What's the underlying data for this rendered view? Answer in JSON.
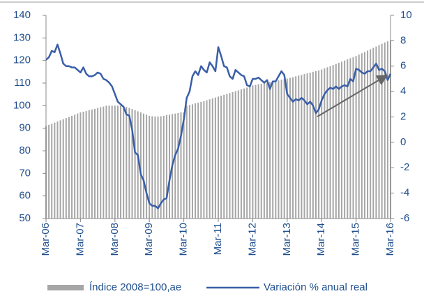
{
  "chart_data": {
    "type": "bar-line",
    "categories": [
      "Mar-06",
      null,
      null,
      null,
      null,
      null,
      null,
      null,
      null,
      null,
      null,
      null,
      "Mar-07",
      null,
      null,
      null,
      null,
      null,
      null,
      null,
      null,
      null,
      null,
      null,
      "Mar-08",
      null,
      null,
      null,
      null,
      null,
      null,
      null,
      null,
      null,
      null,
      null,
      "Mar-09",
      null,
      null,
      null,
      null,
      null,
      null,
      null,
      null,
      null,
      null,
      null,
      "Mar-10",
      null,
      null,
      null,
      null,
      null,
      null,
      null,
      null,
      null,
      null,
      null,
      "Mar-11",
      null,
      null,
      null,
      null,
      null,
      null,
      null,
      null,
      null,
      null,
      null,
      "Mar-12",
      null,
      null,
      null,
      null,
      null,
      null,
      null,
      null,
      null,
      null,
      null,
      "Mar-13",
      null,
      null,
      null,
      null,
      null,
      null,
      null,
      null,
      null,
      null,
      null,
      "Mar-14",
      null,
      null,
      null,
      null,
      null,
      null,
      null,
      null,
      null,
      null,
      null,
      "Mar-15",
      null,
      null,
      null,
      null,
      null,
      null,
      null,
      null,
      null,
      null,
      null,
      "Mar-16"
    ],
    "series": [
      {
        "name": "Índice 2008=100,ae",
        "type": "bar",
        "color": "#a6a6a6",
        "values": [
          91,
          91.5,
          92,
          92.5,
          93,
          93.5,
          94,
          94.5,
          95,
          95.5,
          96,
          96.5,
          97,
          97.3,
          97.6,
          98,
          98.3,
          98.6,
          99,
          99.3,
          99.6,
          100,
          100,
          100,
          100,
          100,
          100,
          99.8,
          99.5,
          99,
          98.5,
          98,
          97.5,
          97,
          96.5,
          96,
          95.5,
          95.3,
          95.2,
          95.2,
          95.3,
          95.5,
          95.8,
          96,
          96.3,
          96.5,
          96.7,
          97,
          97,
          100,
          100.3,
          100.6,
          101,
          101.3,
          101.7,
          102,
          102.4,
          102.8,
          103.2,
          103.6,
          104,
          104.4,
          104.8,
          105.2,
          105.6,
          106,
          106.4,
          106.8,
          107.2,
          107.6,
          108,
          108.5,
          109,
          109.2,
          109.5,
          109.7,
          110,
          110.2,
          110.5,
          110.7,
          111,
          111.2,
          111.5,
          111.7,
          112,
          112.3,
          112.6,
          113,
          113.3,
          113.6,
          114,
          114.3,
          114.6,
          115,
          115.3,
          115.6,
          116,
          116.5,
          117,
          117.5,
          118,
          118.5,
          119,
          119.5,
          120,
          120.5,
          121,
          121.5,
          122,
          122.6,
          123.2,
          123.8,
          124.4,
          125,
          125.6,
          126.2,
          126.8,
          127.4,
          128,
          128.5,
          129
        ]
      },
      {
        "name": "Variación % anual real",
        "type": "line",
        "axis": "y2",
        "color": "#3a5ea8",
        "values": [
          6.5,
          6.7,
          7.2,
          7.1,
          7.7,
          7.0,
          6.2,
          6.0,
          6.0,
          5.9,
          5.9,
          5.7,
          5.5,
          5.9,
          5.4,
          5.2,
          5.2,
          5.3,
          5.5,
          5.4,
          5.0,
          4.9,
          4.7,
          4.4,
          3.8,
          3.2,
          3.0,
          2.8,
          2.2,
          2.1,
          1.0,
          -0.8,
          -1.0,
          -2.5,
          -3.0,
          -4.0,
          -4.8,
          -5.0,
          -5.0,
          -5.2,
          -4.8,
          -4.5,
          -4.4,
          -3.0,
          -1.8,
          -1.0,
          -0.5,
          0.5,
          1.8,
          3.5,
          4.0,
          5.2,
          5.6,
          5.3,
          6.0,
          5.7,
          5.5,
          6.3,
          6.0,
          5.6,
          7.5,
          6.8,
          6.0,
          5.9,
          5.2,
          5.0,
          5.7,
          5.5,
          5.3,
          5.2,
          4.5,
          4.4,
          5.0,
          5.0,
          5.1,
          4.9,
          4.7,
          4.9,
          4.2,
          4.8,
          4.8,
          5.2,
          5.6,
          5.3,
          3.8,
          3.5,
          3.2,
          3.4,
          3.3,
          3.5,
          3.3,
          3.0,
          3.2,
          2.9,
          2.3,
          2.6,
          3.3,
          3.8,
          4.1,
          4.3,
          4.2,
          4.4,
          4.2,
          4.4,
          4.5,
          4.4,
          5.0,
          4.8,
          5.8,
          5.7,
          5.5,
          5.4,
          5.6,
          5.6,
          5.9,
          6.2,
          5.7,
          5.8,
          5.6,
          4.9,
          5.4
        ]
      }
    ],
    "ylim": [
      50,
      140
    ],
    "yticks": [
      50,
      60,
      70,
      80,
      90,
      100,
      110,
      120,
      130,
      140
    ],
    "y2lim": [
      -6,
      10
    ],
    "y2ticks": [
      -6,
      -4,
      -2,
      0,
      2,
      4,
      6,
      8,
      10
    ],
    "legend": "bottom"
  }
}
